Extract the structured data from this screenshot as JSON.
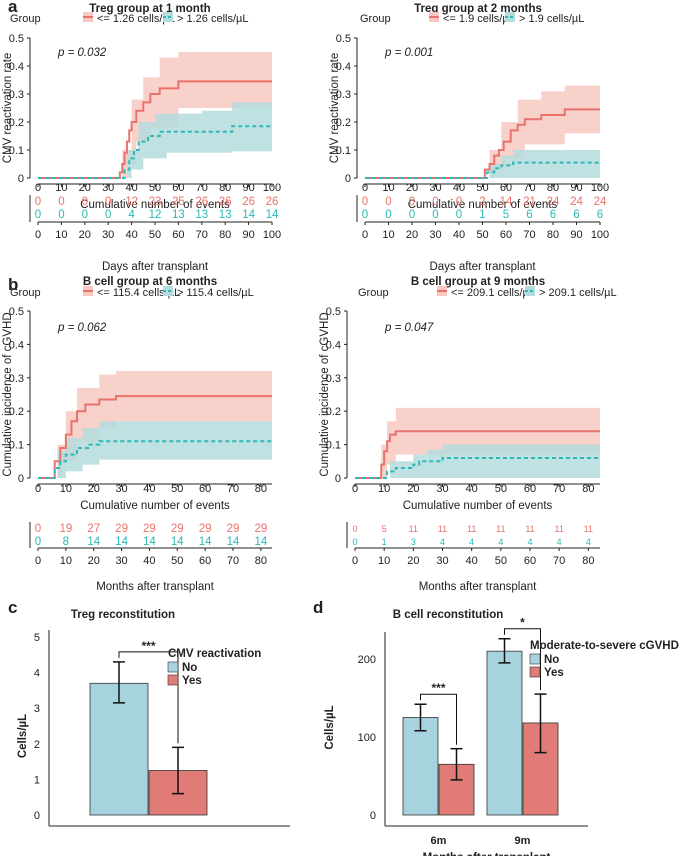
{
  "colors": {
    "red": "#e8736c",
    "red_fill": "#f8c9c2",
    "teal": "#2ab8b8",
    "teal_fill": "#b5dcdd",
    "overlap": "#cccccc",
    "bar_blue": "#a7d3df",
    "bar_red": "#e07b78"
  },
  "chart_data": [
    {
      "panel": "a",
      "type": "line",
      "title": "Treg group at 1 month",
      "ylabel": "CMV reactivation rate",
      "xlabel": "Cumulative number of events",
      "risk_xlabel": "Days after transplant",
      "ylim": [
        0,
        0.5
      ],
      "yticks": [
        0,
        0.1,
        0.2,
        0.3,
        0.4,
        0.5
      ],
      "xlim": [
        0,
        100
      ],
      "xticks": [
        0,
        10,
        20,
        30,
        40,
        50,
        60,
        70,
        80,
        90,
        100
      ],
      "legend_title": "Group",
      "pvalue": "p = 0.032",
      "series": [
        {
          "name": "<= 1.26 cells/µL",
          "color": "red",
          "steps": [
            [
              0,
              0
            ],
            [
              33,
              0
            ],
            [
              35,
              0.02
            ],
            [
              36,
              0.05
            ],
            [
              37,
              0.09
            ],
            [
              38,
              0.13
            ],
            [
              39,
              0.17
            ],
            [
              40,
              0.2
            ],
            [
              42,
              0.24
            ],
            [
              45,
              0.27
            ],
            [
              48,
              0.3
            ],
            [
              52,
              0.32
            ],
            [
              60,
              0.345
            ],
            [
              100,
              0.345
            ]
          ],
          "lower": [
            [
              0,
              0
            ],
            [
              35,
              0
            ],
            [
              38,
              0.05
            ],
            [
              42,
              0.13
            ],
            [
              48,
              0.18
            ],
            [
              60,
              0.25
            ],
            [
              100,
              0.25
            ]
          ],
          "upper": [
            [
              0,
              0
            ],
            [
              33,
              0
            ],
            [
              36,
              0.1
            ],
            [
              40,
              0.28
            ],
            [
              45,
              0.36
            ],
            [
              52,
              0.43
            ],
            [
              60,
              0.45
            ],
            [
              100,
              0.45
            ]
          ],
          "risk": [
            "0",
            "0",
            "0",
            "0",
            "12",
            "23",
            "25",
            "26",
            "26",
            "26",
            "26"
          ]
        },
        {
          "name": "> 1.26 cells/µL",
          "color": "teal",
          "steps": [
            [
              0,
              0
            ],
            [
              35,
              0
            ],
            [
              37,
              0.03
            ],
            [
              39,
              0.07
            ],
            [
              41,
              0.1
            ],
            [
              43,
              0.13
            ],
            [
              47,
              0.15
            ],
            [
              52,
              0.165
            ],
            [
              70,
              0.165
            ],
            [
              83,
              0.185
            ],
            [
              100,
              0.185
            ]
          ],
          "lower": [
            [
              0,
              0
            ],
            [
              37,
              0
            ],
            [
              40,
              0.03
            ],
            [
              45,
              0.07
            ],
            [
              55,
              0.09
            ],
            [
              83,
              0.095
            ],
            [
              100,
              0.095
            ]
          ],
          "upper": [
            [
              0,
              0
            ],
            [
              35,
              0
            ],
            [
              38,
              0.1
            ],
            [
              43,
              0.2
            ],
            [
              50,
              0.23
            ],
            [
              70,
              0.24
            ],
            [
              83,
              0.27
            ],
            [
              100,
              0.27
            ]
          ],
          "risk": [
            "0",
            "0",
            "0",
            "0",
            "4",
            "12",
            "13",
            "13",
            "13",
            "14",
            "14"
          ]
        }
      ]
    },
    {
      "panel": "",
      "type": "line",
      "title": "Treg group at 2 months",
      "ylabel": "CMV reactivation rate",
      "xlabel": "Cumulative number of events",
      "risk_xlabel": "Days after transplant",
      "ylim": [
        0,
        0.5
      ],
      "yticks": [
        0,
        0.1,
        0.2,
        0.3,
        0.4,
        0.5
      ],
      "xlim": [
        0,
        100
      ],
      "xticks": [
        0,
        10,
        20,
        30,
        40,
        50,
        60,
        70,
        80,
        90,
        100
      ],
      "legend_title": "Group",
      "pvalue": "p = 0.001",
      "series": [
        {
          "name": "<= 1.9 cells/µL",
          "color": "red",
          "steps": [
            [
              0,
              0
            ],
            [
              49,
              0
            ],
            [
              51,
              0.03
            ],
            [
              53,
              0.05
            ],
            [
              55,
              0.08
            ],
            [
              57,
              0.1
            ],
            [
              59,
              0.13
            ],
            [
              62,
              0.17
            ],
            [
              65,
              0.19
            ],
            [
              68,
              0.21
            ],
            [
              75,
              0.225
            ],
            [
              85,
              0.245
            ],
            [
              100,
              0.245
            ]
          ],
          "lower": [
            [
              0,
              0
            ],
            [
              51,
              0
            ],
            [
              55,
              0.03
            ],
            [
              60,
              0.07
            ],
            [
              68,
              0.12
            ],
            [
              85,
              0.16
            ],
            [
              100,
              0.16
            ]
          ],
          "upper": [
            [
              0,
              0
            ],
            [
              49,
              0
            ],
            [
              53,
              0.1
            ],
            [
              58,
              0.2
            ],
            [
              65,
              0.28
            ],
            [
              75,
              0.31
            ],
            [
              85,
              0.33
            ],
            [
              100,
              0.33
            ]
          ],
          "risk": [
            "0",
            "0",
            "0",
            "0",
            "0",
            "2",
            "14",
            "21",
            "24",
            "24",
            "24"
          ]
        },
        {
          "name": "> 1.9 cells/µL",
          "color": "teal",
          "steps": [
            [
              0,
              0
            ],
            [
              50,
              0
            ],
            [
              52,
              0.02
            ],
            [
              55,
              0.035
            ],
            [
              58,
              0.045
            ],
            [
              63,
              0.055
            ],
            [
              100,
              0.055
            ]
          ],
          "lower": [
            [
              0,
              0
            ],
            [
              100,
              0
            ]
          ],
          "upper": [
            [
              0,
              0
            ],
            [
              50,
              0
            ],
            [
              53,
              0.05
            ],
            [
              58,
              0.08
            ],
            [
              63,
              0.1
            ],
            [
              100,
              0.1
            ]
          ],
          "risk": [
            "0",
            "0",
            "0",
            "0",
            "0",
            "1",
            "5",
            "6",
            "6",
            "6",
            "6"
          ]
        }
      ]
    },
    {
      "panel": "b",
      "type": "line",
      "title": "B cell group at 6 months",
      "ylabel": "Cumulative incidence of cGVHD",
      "xlabel": "Cumulative number of events",
      "risk_xlabel": "Months after transplant",
      "ylim": [
        0,
        0.5
      ],
      "yticks": [
        0,
        0.1,
        0.2,
        0.3,
        0.4,
        0.5
      ],
      "xlim": [
        0,
        84
      ],
      "xticks": [
        0,
        10,
        20,
        30,
        40,
        50,
        60,
        70,
        80
      ],
      "legend_title": "Group",
      "pvalue": "p = 0.062",
      "series": [
        {
          "name": "<= 115.4 cells/µL",
          "color": "red",
          "steps": [
            [
              0,
              0
            ],
            [
              5,
              0
            ],
            [
              6,
              0.05
            ],
            [
              8,
              0.09
            ],
            [
              10,
              0.13
            ],
            [
              12,
              0.17
            ],
            [
              14,
              0.2
            ],
            [
              17,
              0.22
            ],
            [
              22,
              0.235
            ],
            [
              28,
              0.245
            ],
            [
              84,
              0.245
            ]
          ],
          "lower": [
            [
              0,
              0
            ],
            [
              6,
              0
            ],
            [
              9,
              0.05
            ],
            [
              14,
              0.11
            ],
            [
              22,
              0.15
            ],
            [
              28,
              0.17
            ],
            [
              84,
              0.17
            ]
          ],
          "upper": [
            [
              0,
              0
            ],
            [
              5,
              0
            ],
            [
              7,
              0.1
            ],
            [
              10,
              0.2
            ],
            [
              14,
              0.27
            ],
            [
              22,
              0.31
            ],
            [
              28,
              0.32
            ],
            [
              84,
              0.32
            ]
          ],
          "risk": [
            "0",
            "19",
            "27",
            "29",
            "29",
            "29",
            "29",
            "29",
            "29"
          ]
        },
        {
          "name": "> 115.4 cells/µL",
          "color": "teal",
          "steps": [
            [
              0,
              0
            ],
            [
              5,
              0
            ],
            [
              6,
              0.03
            ],
            [
              8,
              0.05
            ],
            [
              10,
              0.07
            ],
            [
              14,
              0.09
            ],
            [
              18,
              0.1
            ],
            [
              22,
              0.11
            ],
            [
              84,
              0.11
            ]
          ],
          "lower": [
            [
              0,
              0
            ],
            [
              7,
              0
            ],
            [
              10,
              0.02
            ],
            [
              16,
              0.04
            ],
            [
              22,
              0.055
            ],
            [
              84,
              0.055
            ]
          ],
          "upper": [
            [
              0,
              0
            ],
            [
              5,
              0
            ],
            [
              7,
              0.08
            ],
            [
              10,
              0.12
            ],
            [
              16,
              0.15
            ],
            [
              22,
              0.17
            ],
            [
              84,
              0.17
            ]
          ],
          "risk": [
            "0",
            "8",
            "14",
            "14",
            "14",
            "14",
            "14",
            "14",
            "14"
          ]
        }
      ]
    },
    {
      "panel": "",
      "type": "line",
      "title": "B cell group at 9 months",
      "ylabel": "Cumulative incidence of cGVHD",
      "xlabel": "Cumulative number of events",
      "risk_xlabel": "Months after transplant",
      "ylim": [
        0,
        0.5
      ],
      "yticks": [
        0,
        0.1,
        0.2,
        0.3,
        0.4,
        0.5
      ],
      "xlim": [
        0,
        84
      ],
      "xticks": [
        0,
        10,
        20,
        30,
        40,
        50,
        60,
        70,
        80
      ],
      "legend_title": "Group",
      "pvalue": "p = 0.047",
      "series": [
        {
          "name": "<= 209.1 cells/µL",
          "color": "red",
          "steps": [
            [
              0,
              0
            ],
            [
              8,
              0
            ],
            [
              9,
              0.04
            ],
            [
              10,
              0.08
            ],
            [
              11,
              0.11
            ],
            [
              12,
              0.13
            ],
            [
              14,
              0.14
            ],
            [
              84,
              0.14
            ]
          ],
          "lower": [
            [
              0,
              0
            ],
            [
              9,
              0
            ],
            [
              11,
              0.04
            ],
            [
              14,
              0.07
            ],
            [
              84,
              0.07
            ]
          ],
          "upper": [
            [
              0,
              0
            ],
            [
              8,
              0
            ],
            [
              9,
              0.1
            ],
            [
              11,
              0.17
            ],
            [
              14,
              0.21
            ],
            [
              84,
              0.21
            ]
          ],
          "risk": [
            "0",
            "5",
            "11",
            "11",
            "11",
            "11",
            "11",
            "11",
            "11"
          ]
        },
        {
          "name": "> 209.1 cells/µL",
          "color": "teal",
          "steps": [
            [
              0,
              0
            ],
            [
              9,
              0
            ],
            [
              11,
              0.02
            ],
            [
              14,
              0.03
            ],
            [
              20,
              0.04
            ],
            [
              22,
              0.05
            ],
            [
              30,
              0.06
            ],
            [
              84,
              0.06
            ]
          ],
          "lower": [
            [
              0,
              0
            ],
            [
              100,
              0
            ]
          ],
          "upper": [
            [
              0,
              0
            ],
            [
              9,
              0
            ],
            [
              12,
              0.05
            ],
            [
              20,
              0.07
            ],
            [
              25,
              0.085
            ],
            [
              30,
              0.1
            ],
            [
              84,
              0.1
            ]
          ],
          "risk": [
            "0",
            "1",
            "3",
            "4",
            "4",
            "4",
            "4",
            "4",
            "4"
          ]
        }
      ]
    },
    {
      "panel": "c",
      "type": "bar",
      "title": "Treg reconstitution",
      "ylabel": "Cells/µL",
      "ylim": [
        0,
        5
      ],
      "yticks": [
        0,
        1,
        2,
        3,
        4,
        5
      ],
      "legend_title": "CMV reactivation",
      "series": [
        {
          "name": "No",
          "color": "bar_blue",
          "values": [
            3.7
          ],
          "err_low": [
            3.15
          ],
          "err_high": [
            4.3
          ]
        },
        {
          "name": "Yes",
          "color": "bar_red",
          "values": [
            1.25
          ],
          "err_low": [
            0.6
          ],
          "err_high": [
            1.9
          ]
        }
      ],
      "significance": [
        "***"
      ]
    },
    {
      "panel": "d",
      "type": "bar",
      "title": "B cell reconstitution",
      "ylabel": "Cells/µL",
      "xlabel": "Months after transplant",
      "categories": [
        "6m",
        "9m"
      ],
      "ylim": [
        0,
        250
      ],
      "yticks": [
        0,
        100,
        200
      ],
      "legend_title": "Moderate-to-severe cGVHD",
      "series": [
        {
          "name": "No",
          "color": "bar_blue",
          "values": [
            125,
            210
          ],
          "err_low": [
            108,
            195
          ],
          "err_high": [
            142,
            226
          ]
        },
        {
          "name": "Yes",
          "color": "bar_red",
          "values": [
            65,
            118
          ],
          "err_low": [
            45,
            80
          ],
          "err_high": [
            85,
            155
          ]
        }
      ],
      "significance": [
        "***",
        "*"
      ]
    }
  ]
}
